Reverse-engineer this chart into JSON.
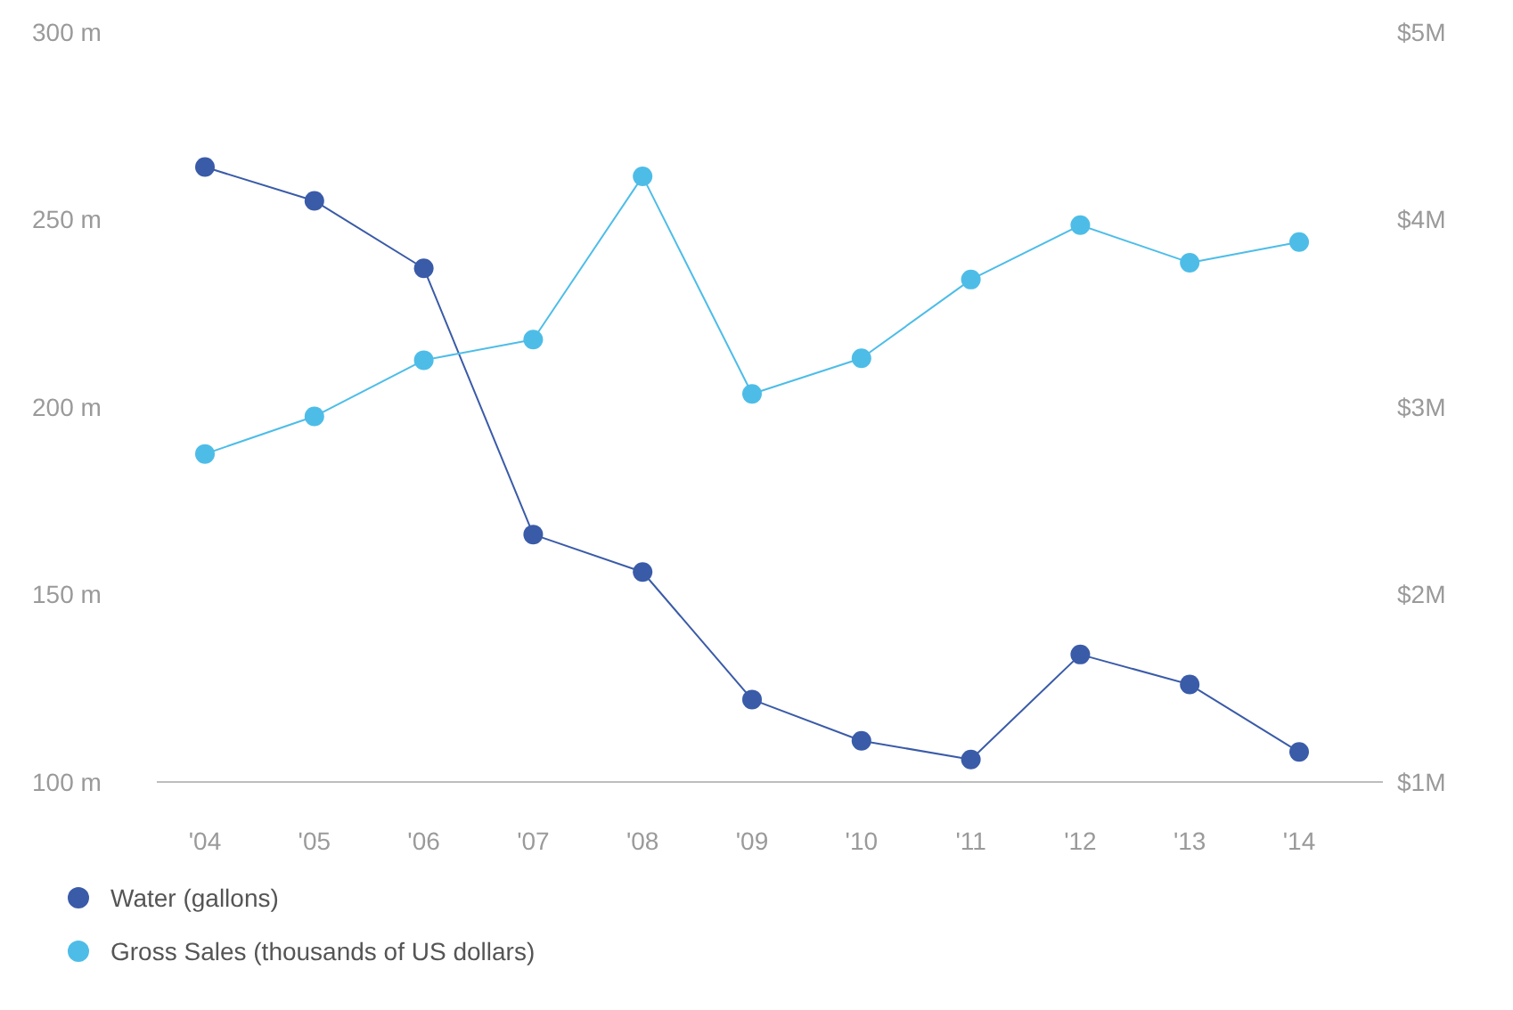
{
  "chart_data": {
    "type": "line",
    "categories": [
      "'04",
      "'05",
      "'06",
      "'07",
      "'08",
      "'09",
      "'10",
      "'11",
      "'12",
      "'13",
      "'14"
    ],
    "series": [
      {
        "name": "Water (gallons)",
        "color": "#3a5ba8",
        "values": [
          264,
          255,
          237,
          166,
          156,
          122,
          111,
          106,
          134,
          126,
          108
        ]
      },
      {
        "name": "Gross Sales (thousands of US dollars)",
        "color": "#4dbde8",
        "axis": "y2",
        "values": [
          2.75,
          2.95,
          3.25,
          3.36,
          4.23,
          3.07,
          3.26,
          3.68,
          3.97,
          3.77,
          3.88
        ]
      }
    ],
    "ylim": [
      100,
      300
    ],
    "yticks": [
      {
        "value": 100,
        "label": "100 m"
      },
      {
        "value": 150,
        "label": "150 m"
      },
      {
        "value": 200,
        "label": "200 m"
      },
      {
        "value": 250,
        "label": "250 m"
      },
      {
        "value": 300,
        "label": "300 m"
      }
    ],
    "y2lim": [
      1,
      5
    ],
    "y2ticks": [
      {
        "value": 1,
        "label": "$1M"
      },
      {
        "value": 2,
        "label": "$2M"
      },
      {
        "value": 3,
        "label": "$3M"
      },
      {
        "value": 4,
        "label": "$4M"
      },
      {
        "value": 5,
        "label": "$5M"
      }
    ],
    "grid": false,
    "legend": "bottom left",
    "marker": "circle",
    "line_style": "solid"
  }
}
